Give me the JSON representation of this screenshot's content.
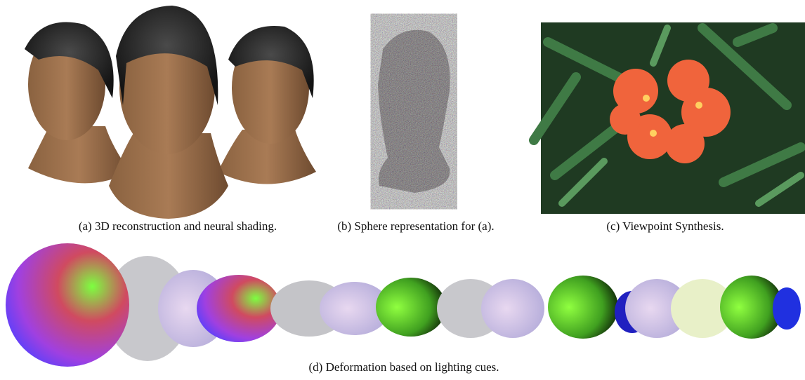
{
  "figure": {
    "captions": {
      "a": "(a) 3D reconstruction and neural shading.",
      "b": "(b) Sphere representation for (a).",
      "c": "(c) Viewpoint Synthesis.",
      "d": "(d) Deformation based on lighting cues."
    }
  }
}
